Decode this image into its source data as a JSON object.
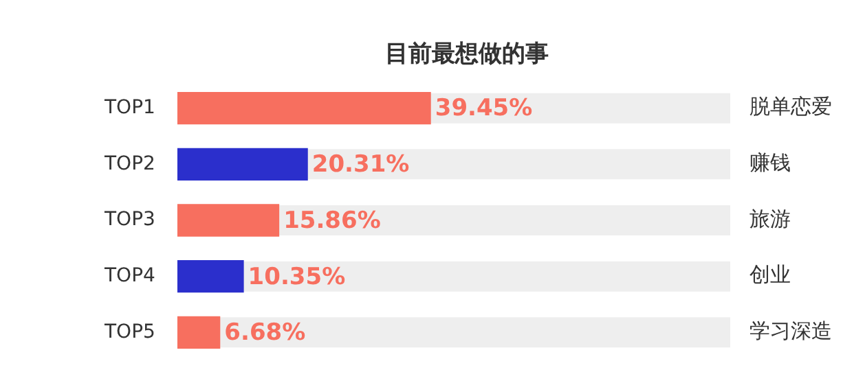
{
  "chart_data": {
    "type": "bar",
    "orientation": "horizontal",
    "title": "目前最想做的事",
    "categories": [
      "TOP1",
      "TOP2",
      "TOP3",
      "TOP4",
      "TOP5"
    ],
    "y2_categories": [
      "脱单恋爱",
      "赚钱",
      "旅游",
      "创业",
      "学习深造"
    ],
    "values": [
      39.45,
      20.31,
      15.86,
      10.35,
      6.68
    ],
    "value_labels": [
      "39.45%",
      "20.31%",
      "15.86%",
      "10.35%",
      "6.68%"
    ],
    "colors": [
      "#f76f5f",
      "#2b2fcc",
      "#f76f5f",
      "#2b2fcc",
      "#f76f5f"
    ],
    "xlim": [
      0,
      86
    ],
    "tick_labels": "y"
  }
}
